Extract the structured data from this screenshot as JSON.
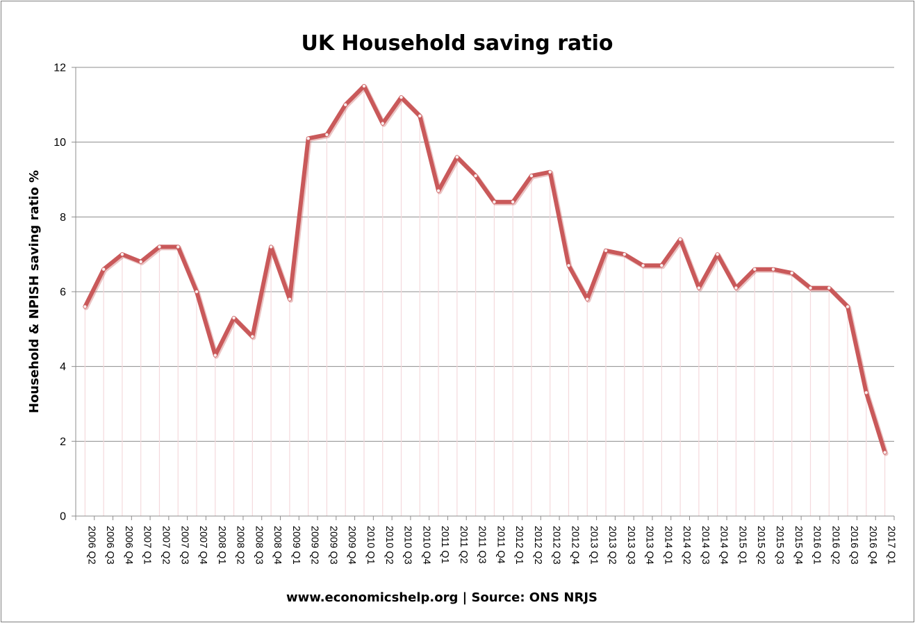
{
  "chart_data": {
    "type": "line",
    "title": "UK Household saving ratio",
    "ylabel": "Household & NPISH saving ratio %",
    "xlabel": "",
    "source": "www.economicshelp.org | Source: ONS NRJS",
    "ylim": [
      0,
      12
    ],
    "yticks": [
      "0",
      "2",
      "4",
      "6",
      "8",
      "10",
      "12"
    ],
    "grid": true,
    "legend": "none",
    "line_color": "#c9595a",
    "categories": [
      "2006 Q2",
      "2006 Q3",
      "2006 Q4",
      "2007 Q1",
      "2007 Q2",
      "2007 Q3",
      "2007 Q4",
      "2008 Q1",
      "2008 Q2",
      "2008 Q3",
      "2008 Q4",
      "2009 Q1",
      "2009 Q2",
      "2009 Q3",
      "2009 Q4",
      "2010 Q1",
      "2010 Q2",
      "2010 Q3",
      "2010 Q4",
      "2011 Q1",
      "2011 Q2",
      "2011 Q3",
      "2011 Q4",
      "2012 Q1",
      "2012 Q2",
      "2012 Q3",
      "2012 Q4",
      "2013 Q1",
      "2013 Q2",
      "2013 Q3",
      "2013 Q4",
      "2014 Q1",
      "2014 Q2",
      "2014 Q3",
      "2014 Q4",
      "2015 Q1",
      "2015 Q2",
      "2015 Q3",
      "2015 Q4",
      "2016 Q1",
      "2016 Q2",
      "2016 Q3",
      "2016 Q4",
      "2017 Q1"
    ],
    "series": [
      {
        "values": [
          5.6,
          6.6,
          7.0,
          6.8,
          7.2,
          7.2,
          6.0,
          4.3,
          5.3,
          4.8,
          7.2,
          5.8,
          10.1,
          10.2,
          11.0,
          11.5,
          10.5,
          11.2,
          10.7,
          8.7,
          9.6,
          9.1,
          8.4,
          8.4,
          9.1,
          9.2,
          6.7,
          5.8,
          7.1,
          7.0,
          6.7,
          6.7,
          7.4,
          6.1,
          7.0,
          6.1,
          6.6,
          6.6,
          6.5,
          6.1,
          6.1,
          5.6,
          3.3,
          1.7
        ]
      }
    ]
  }
}
